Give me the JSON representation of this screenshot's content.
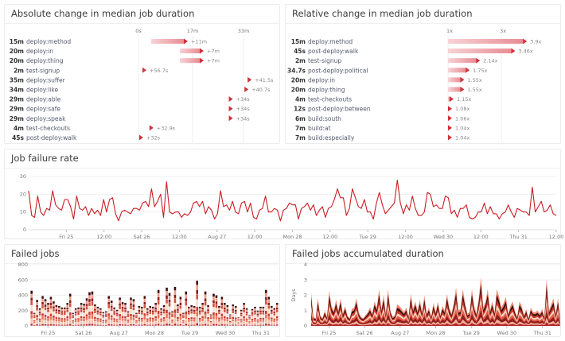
{
  "colors": {
    "accent": "#d0303a",
    "bar_fill": "#f2b8bc",
    "line": "#c81e24",
    "grid": "#eeeeee"
  },
  "chart_data": [
    {
      "id": "abs",
      "type": "bar",
      "title": "Absolute change in median job duration",
      "x_ticks": [
        "0s",
        "17m",
        "33m"
      ],
      "x_tick_values_min": [
        0,
        17,
        33
      ],
      "xlim_min": [
        0,
        40
      ],
      "rows": [
        {
          "duration": "15m",
          "job": "deploy:method",
          "from_min": 4,
          "to_min": 15,
          "delta": "+11m"
        },
        {
          "duration": "20m",
          "job": "deploy:in",
          "from_min": 13,
          "to_min": 20,
          "delta": "+7m"
        },
        {
          "duration": "20m",
          "job": "deploy:thing",
          "from_min": 13,
          "to_min": 20,
          "delta": "+7m"
        },
        {
          "duration": "2m",
          "job": "test-signup",
          "from_min": 1.05,
          "to_min": 2,
          "delta": "+56.7s"
        },
        {
          "duration": "35m",
          "job": "deploy:suffer",
          "from_min": 34.3,
          "to_min": 35,
          "delta": "+41.5s"
        },
        {
          "duration": "34m",
          "job": "deploy:like",
          "from_min": 33.3,
          "to_min": 34,
          "delta": "+40.7s"
        },
        {
          "duration": "29m",
          "job": "deploy:able",
          "from_min": 28.4,
          "to_min": 29,
          "delta": "+34s"
        },
        {
          "duration": "29m",
          "job": "deploy:safe",
          "from_min": 28.4,
          "to_min": 29,
          "delta": "+34s"
        },
        {
          "duration": "29m",
          "job": "deploy:speak",
          "from_min": 28.4,
          "to_min": 29,
          "delta": "+34s"
        },
        {
          "duration": "4m",
          "job": "test-checkouts",
          "from_min": 3.45,
          "to_min": 4,
          "delta": "+32.9s"
        },
        {
          "duration": "45s",
          "job": "post-deploy:walk",
          "from_min": 0.22,
          "to_min": 0.75,
          "delta": "+32s"
        }
      ]
    },
    {
      "id": "rel",
      "type": "bar",
      "title": "Relative change in median job duration",
      "x_ticks": [
        "1x",
        "3x"
      ],
      "x_tick_values": [
        1,
        3
      ],
      "xlim": [
        1,
        5
      ],
      "rows": [
        {
          "duration": "15m",
          "job": "deploy:method",
          "ratio": 3.9,
          "label": "3.9x"
        },
        {
          "duration": "45s",
          "job": "post-deploy:walk",
          "ratio": 3.46,
          "label": "3.46x"
        },
        {
          "duration": "2m",
          "job": "test-signup",
          "ratio": 2.14,
          "label": "2.14x"
        },
        {
          "duration": "34.7s",
          "job": "post-deploy:political",
          "ratio": 1.75,
          "label": "1.75x"
        },
        {
          "duration": "20m",
          "job": "deploy:in",
          "ratio": 1.55,
          "label": "1.55x"
        },
        {
          "duration": "20m",
          "job": "deploy:thing",
          "ratio": 1.55,
          "label": "1.55x"
        },
        {
          "duration": "4m",
          "job": "test-checkouts",
          "ratio": 1.15,
          "label": "1.15x"
        },
        {
          "duration": "12s",
          "job": "post-deploy:between",
          "ratio": 1.08,
          "label": "1.08x"
        },
        {
          "duration": "6m",
          "job": "build:south",
          "ratio": 1.06,
          "label": "1.06x"
        },
        {
          "duration": "7m",
          "job": "build:at",
          "ratio": 1.04,
          "label": "1.04x"
        },
        {
          "duration": "7m",
          "job": "build:especially",
          "ratio": 1.04,
          "label": "1.04x"
        }
      ]
    },
    {
      "id": "rate",
      "type": "line",
      "title": "Job failure rate",
      "ylim": [
        0,
        30
      ],
      "y_ticks": [
        0,
        10,
        20,
        30
      ],
      "x_ticks": [
        "Fri 25",
        "12:00",
        "Sat 26",
        "12:00",
        "Aug 27",
        "12:00",
        "Mon 28",
        "12:00",
        "Tue 29",
        "12:00",
        "Wed 30",
        "12:00",
        "Thu 31",
        "12:00"
      ],
      "x_tick_hours": [
        12,
        24,
        36,
        48,
        60,
        72,
        84,
        96,
        108,
        120,
        132,
        144,
        156,
        168
      ],
      "x_range_hours": [
        0,
        168
      ],
      "values": [
        22,
        8,
        7,
        19,
        10,
        8,
        12,
        11,
        22,
        14,
        12,
        11,
        17,
        17,
        13,
        6,
        19,
        12,
        11,
        13,
        8,
        12,
        9,
        11,
        8,
        17,
        10,
        17,
        18,
        9,
        5,
        10,
        11,
        10,
        9,
        12,
        12,
        11,
        15,
        16,
        13,
        23,
        13,
        16,
        20,
        7,
        27,
        10,
        9,
        10,
        10,
        7,
        9,
        8,
        10,
        15,
        16,
        13,
        16,
        9,
        13,
        11,
        6,
        9,
        22,
        13,
        14,
        11,
        16,
        10,
        9,
        15,
        16,
        10,
        15,
        7,
        6,
        11,
        12,
        19,
        10,
        10,
        12,
        11,
        5,
        11,
        12,
        15,
        14,
        14,
        6,
        12,
        13,
        15,
        11,
        14,
        8,
        11,
        13,
        7,
        12,
        13,
        17,
        23,
        18,
        18,
        8,
        12,
        23,
        18,
        13,
        12,
        17,
        10,
        10,
        6,
        15,
        21,
        14,
        9,
        11,
        13,
        15,
        28,
        15,
        9,
        14,
        11,
        19,
        12,
        8,
        8,
        10,
        21,
        20,
        13,
        14,
        12,
        12,
        19,
        18,
        9,
        11,
        7,
        12,
        12,
        14,
        7,
        6,
        7,
        10,
        10,
        15,
        9,
        13,
        9,
        9,
        6,
        9,
        10,
        14,
        10,
        7,
        12,
        11,
        10,
        10,
        8,
        24,
        10,
        13,
        16,
        10,
        11,
        14,
        9,
        8
      ]
    },
    {
      "id": "failed",
      "type": "bar",
      "stacked": true,
      "title": "Failed jobs",
      "ylim": [
        0,
        800
      ],
      "y_ticks": [
        0,
        200,
        400,
        600,
        800
      ],
      "x_ticks": [
        "Fri 25",
        "Sat 26",
        "Aug 27",
        "Mon 28",
        "Tue 29",
        "Wed 30",
        "Thu 31"
      ],
      "x_tick_hours": [
        12,
        36,
        60,
        84,
        108,
        132,
        156
      ],
      "x_range_hours": [
        0,
        168
      ],
      "totals": [
        460,
        170,
        340,
        230,
        390,
        350,
        300,
        380,
        320,
        270,
        260,
        240,
        240,
        300,
        420,
        170,
        230,
        240,
        300,
        290,
        360,
        440,
        450,
        280,
        250,
        230,
        180,
        190,
        390,
        330,
        240,
        210,
        370,
        310,
        300,
        190,
        370,
        350,
        170,
        260,
        250,
        390,
        230,
        260,
        250,
        300,
        470,
        230,
        270,
        500,
        430,
        190,
        510,
        280,
        380,
        170,
        450,
        250,
        270,
        260,
        590,
        250,
        300,
        450,
        270,
        150,
        420,
        400,
        260,
        380,
        300,
        270,
        150,
        280,
        260,
        110,
        210,
        300,
        230,
        140,
        220,
        250,
        200,
        250,
        250,
        470,
        380,
        260,
        230,
        300
      ]
    },
    {
      "id": "accum",
      "type": "area",
      "stacked": true,
      "title": "Failed jobs accumulated duration",
      "ylabel": "Days",
      "ylim": [
        0,
        4
      ],
      "y_ticks": [
        0,
        1,
        2,
        3,
        4
      ],
      "x_ticks": [
        "Fri 25",
        "Sat 26",
        "Aug 27",
        "Mon 28",
        "Tue 29",
        "Wed 30",
        "Thu 31"
      ],
      "x_tick_hours": [
        12,
        36,
        60,
        84,
        108,
        132,
        156
      ],
      "x_range_hours": [
        0,
        168
      ],
      "totals": [
        2.2,
        0.6,
        0.5,
        1.8,
        0.7,
        0.5,
        1.0,
        0.6,
        2.3,
        1.3,
        1.0,
        1.7,
        1.0,
        1.8,
        0.8,
        1.3,
        0.7,
        0.5,
        1.1,
        1.2,
        1.8,
        0.9,
        0.6,
        0.5,
        0.7,
        0.9,
        1.2,
        0.8,
        1.6,
        1.2,
        2.4,
        1.1,
        2.0,
        0.8,
        2.4,
        1.0,
        0.6,
        0.7,
        1.4,
        1.3,
        1.1,
        0.9,
        1.2,
        0.6,
        2.1,
        1.1,
        1.6,
        1.0,
        1.7,
        0.9,
        2.0,
        0.8,
        1.2,
        0.6,
        1.5,
        0.9,
        1.6,
        0.7,
        1.3,
        1.0,
        2.1,
        1.2,
        0.8,
        1.5,
        2.5,
        1.0,
        1.1,
        2.4,
        1.5,
        0.8,
        0.9,
        2.4,
        1.3,
        0.8,
        1.8,
        3.2,
        1.2,
        1.6,
        2.4,
        1.0,
        1.6,
        0.9,
        2.4,
        1.9,
        1.2,
        1.5,
        1.9,
        0.8,
        1.3,
        1.6,
        1.0,
        0.6,
        1.6,
        1.3,
        0.7,
        1.1,
        0.5,
        1.2,
        0.9,
        0.9,
        1.0,
        0.8,
        1.1,
        0.6,
        3.1,
        1.0,
        1.4,
        1.8,
        0.8,
        1.8,
        0.5
      ]
    }
  ]
}
